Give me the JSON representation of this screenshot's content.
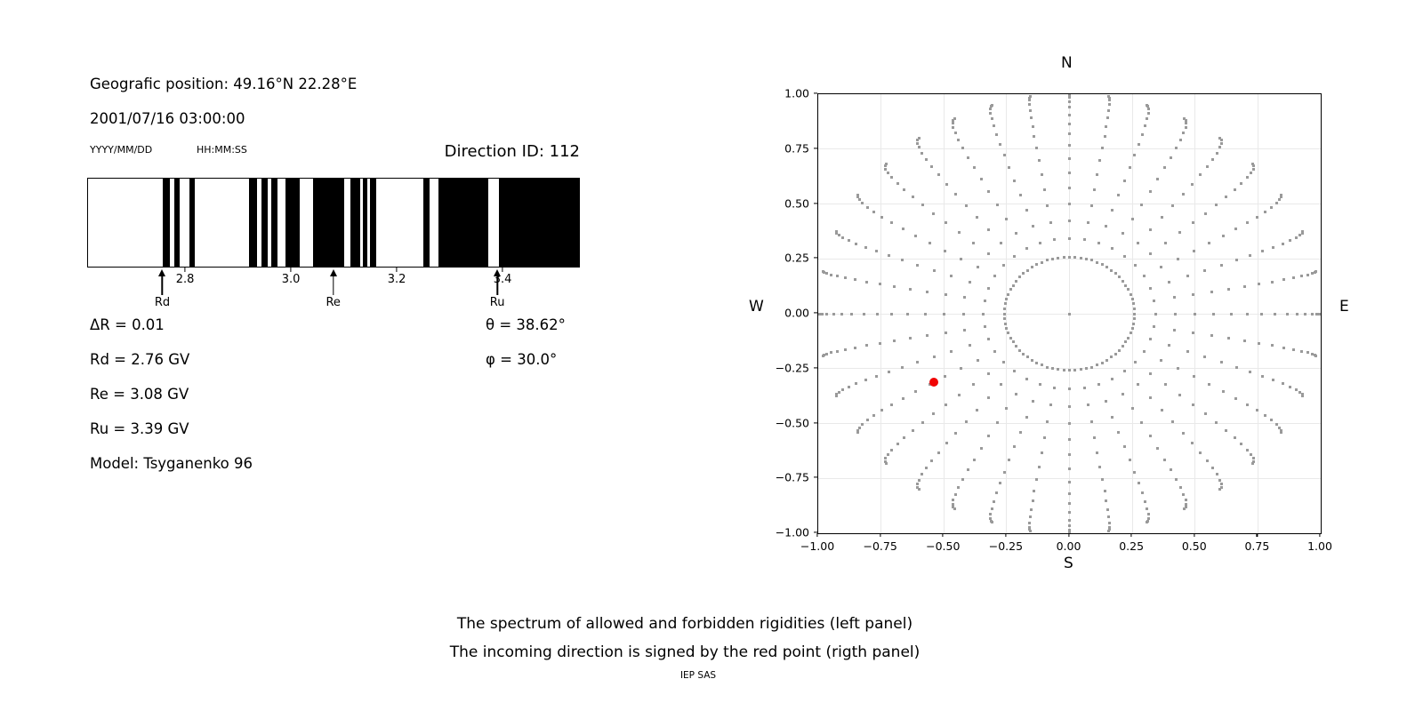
{
  "left_panel": {
    "position_line": "Geografic position: 49.16°N 22.28°E",
    "datetime_line": "2001/07/16 03:00:00",
    "date_format_label": "YYYY/MM/DD",
    "time_format_label": "HH:MM:SS",
    "direction_id": "Direction ID: 112",
    "values": {
      "delta_r": "ΔR = 0.01",
      "rd": "Rd = 2.76 GV",
      "re": "Re = 3.08 GV",
      "ru": "Ru = 3.39 GV",
      "model": "Model: Tsyganenko 96",
      "theta": "θ = 38.62°",
      "phi": "φ = 30.0°"
    }
  },
  "footer": {
    "caption_line1": "The spectrum of allowed and forbidden rigidities (left panel)",
    "caption_line2": "The incoming direction is signed by the red point (rigth panel)",
    "credit": "IEP SAS"
  },
  "chart_data": [
    {
      "type": "bar",
      "subtype": "rigidity-spectrum-barcode",
      "description": "Black bands = allowed rigidities, white = forbidden; x axis in GV",
      "x_range_gv": [
        2.615,
        3.546
      ],
      "x_ticks": [
        {
          "value": 2.8,
          "label": "2.8"
        },
        {
          "value": 3.0,
          "label": "3.0"
        },
        {
          "value": 3.2,
          "label": "3.2"
        },
        {
          "value": 3.4,
          "label": "3.4"
        }
      ],
      "allowed_bands_gv": [
        [
          2.757,
          2.771
        ],
        [
          2.778,
          2.788
        ],
        [
          2.807,
          2.817
        ],
        [
          2.921,
          2.936
        ],
        [
          2.944,
          2.956
        ],
        [
          2.963,
          2.975
        ],
        [
          2.99,
          3.016
        ],
        [
          3.041,
          3.101
        ],
        [
          3.112,
          3.131
        ],
        [
          3.136,
          3.144
        ],
        [
          3.149,
          3.161
        ],
        [
          3.251,
          3.263
        ],
        [
          3.28,
          3.374
        ],
        [
          3.394,
          3.546
        ]
      ],
      "markers": [
        {
          "label": "Rd",
          "gv": 2.757
        },
        {
          "label": "Re",
          "gv": 3.08
        },
        {
          "label": "Ru",
          "gv": 3.39
        }
      ],
      "band_color": "#000000"
    },
    {
      "type": "scatter",
      "subtype": "incoming-direction-grid",
      "xlim": [
        -1,
        1
      ],
      "ylim": [
        -1,
        1
      ],
      "x_tick_labels": [
        "−1.00",
        "−0.75",
        "−0.50",
        "−0.25",
        "0.00",
        "0.25",
        "0.50",
        "0.75",
        "1.00"
      ],
      "x_tick_values": [
        -1,
        -0.75,
        -0.5,
        -0.25,
        0,
        0.25,
        0.5,
        0.75,
        1
      ],
      "grid": true,
      "grid_color": "#e9e9e9",
      "compass": {
        "top": "N",
        "bottom": "S",
        "left": "W",
        "right": "E"
      },
      "dot_color": "#9a9a9a",
      "pattern": {
        "center_dot": true,
        "ring": {
          "radius": 0.2588,
          "count": 72
        },
        "spokes": {
          "count": 36,
          "azimuth_step_deg": 10,
          "theta_start_deg": 20,
          "theta_end_deg": 90,
          "theta_step_deg": 5,
          "radius_rule": "r = sin(theta)",
          "curvature_deg": 3.2,
          "curvature_power": 3
        }
      },
      "red_point": {
        "x": -0.5406,
        "y": -0.3122,
        "color": "#f00505",
        "theta_deg": 38.62,
        "phi_deg": 30.0
      }
    }
  ]
}
